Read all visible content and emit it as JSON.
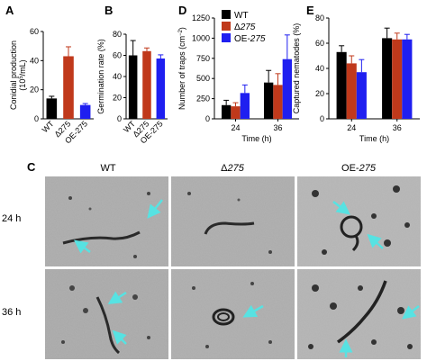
{
  "colors": {
    "wt": "#000000",
    "delta": "#c0391b",
    "oe": "#1f1ff0",
    "arrow": "#57e2e2"
  },
  "panel_letters": {
    "a": "A",
    "b": "B",
    "c": "C",
    "d": "D",
    "e": "E"
  },
  "legend": [
    {
      "key": "wt",
      "prefix": "WT",
      "suffix": ""
    },
    {
      "key": "delta",
      "prefix": "Δ",
      "suffix": "275"
    },
    {
      "key": "oe",
      "prefix": "OE-",
      "suffix": "275"
    }
  ],
  "chart_data": [
    {
      "id": "A",
      "type": "bar",
      "categories": [
        "WT",
        "Δ275",
        "OE-275"
      ],
      "values": [
        14,
        43,
        9.5
      ],
      "errors": [
        1.5,
        6.5,
        1
      ],
      "ylabel_main": "Conidial production",
      "ylabel_sub_prefix": "(10",
      "ylabel_sub_sup": "5",
      "ylabel_sub_suffix": "/mL)",
      "ylim": [
        0,
        60
      ],
      "yticks": [
        0,
        20,
        40,
        60
      ]
    },
    {
      "id": "B",
      "type": "bar",
      "categories": [
        "WT",
        "Δ275",
        "OE-275"
      ],
      "values": [
        60,
        64,
        57
      ],
      "errors": [
        14,
        3,
        3.5
      ],
      "ylabel": "Germination rate (%)",
      "ylim": [
        0,
        80
      ],
      "yticks": [
        0,
        20,
        40,
        60,
        80
      ]
    },
    {
      "id": "D",
      "type": "bar",
      "categories": [
        "24",
        "36"
      ],
      "series": [
        {
          "key": "wt",
          "values": [
            170,
            450
          ],
          "errors": [
            60,
            150
          ]
        },
        {
          "key": "delta",
          "values": [
            155,
            420
          ],
          "errors": [
            45,
            140
          ]
        },
        {
          "key": "oe",
          "values": [
            320,
            740
          ],
          "errors": [
            100,
            300
          ]
        }
      ],
      "ylabel_main": "Number of traps (cm",
      "ylabel_sup": "−2",
      "ylabel_end": ")",
      "xlabel": "Time (h)",
      "ylim": [
        0,
        1250
      ],
      "yticks": [
        0,
        250,
        500,
        750,
        1000,
        1250
      ]
    },
    {
      "id": "E",
      "type": "bar",
      "categories": [
        "24",
        "36"
      ],
      "series": [
        {
          "key": "wt",
          "values": [
            53,
            64
          ],
          "errors": [
            5,
            8
          ]
        },
        {
          "key": "delta",
          "values": [
            44,
            63
          ],
          "errors": [
            6,
            5
          ]
        },
        {
          "key": "oe",
          "values": [
            37,
            63
          ],
          "errors": [
            10,
            4
          ]
        }
      ],
      "ylabel": "Captured nematodes (%)",
      "xlabel": "Time (h)",
      "ylim": [
        0,
        80
      ],
      "yticks": [
        0,
        20,
        40,
        60,
        80
      ]
    }
  ],
  "panel_c": {
    "columns": [
      {
        "prefix": "WT",
        "italic": ""
      },
      {
        "prefix": "Δ",
        "italic": "275"
      },
      {
        "prefix": "OE-",
        "italic": "275"
      }
    ],
    "rows": [
      "24 h",
      "36 h"
    ],
    "image_content": "micrographs of nematodes and fungal traps with cyan arrows"
  }
}
